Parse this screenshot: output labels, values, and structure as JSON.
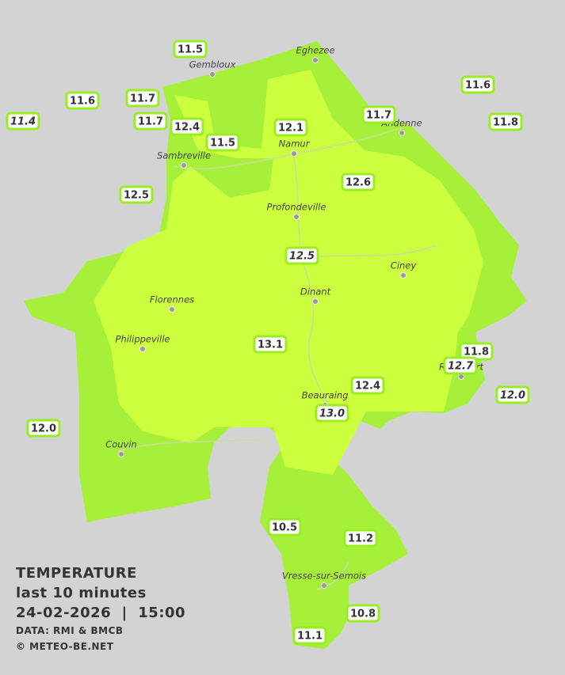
{
  "legend": {
    "title": "TEMPERATURE",
    "subtitle": "last 10 minutes",
    "datetime": "24-02-2026  |  15:00",
    "source": "DATA: RMI & BMCB",
    "copyright": "© METEO-BE.NET"
  },
  "cities": [
    "Eghezee",
    "Gembloux",
    "Andenne",
    "Namur",
    "Sambreville",
    "Profondeville",
    "Ciney",
    "Dinant",
    "Florennes",
    "Philippeville",
    "Rochefort",
    "Beauraing",
    "Couvin",
    "Vresse-sur-Semois"
  ],
  "stations": [
    "11.5",
    "11.6",
    "11.4",
    "11.7",
    "11.7",
    "12.4",
    "11.5",
    "12.1",
    "11.7",
    "11.6",
    "11.8",
    "12.5",
    "12.6",
    "12.5",
    "13.1",
    "11.8",
    "12.7",
    "12.0",
    "12.4",
    "13.0",
    "12.0",
    "10.5",
    "11.2",
    "10.8",
    "11.1"
  ]
}
